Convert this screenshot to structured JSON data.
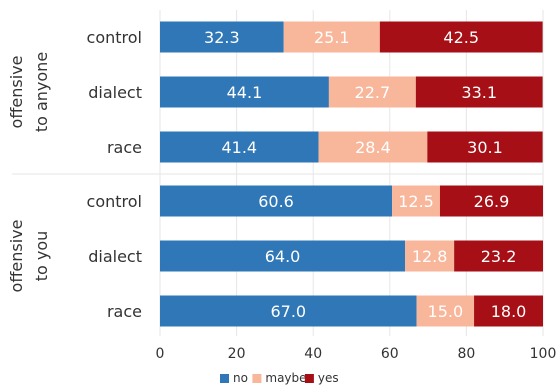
{
  "chart_data": {
    "type": "bar",
    "orientation": "horizontal",
    "stacked": true,
    "groups": [
      {
        "label": [
          "offensive",
          "to anyone"
        ],
        "categories": [
          "control",
          "dialect",
          "race"
        ]
      },
      {
        "label": [
          "offensive",
          "to you"
        ],
        "categories": [
          "control",
          "dialect",
          "race"
        ]
      }
    ],
    "series": [
      {
        "name": "no",
        "color": "#2f77b6",
        "values": [
          32.3,
          44.1,
          41.4,
          60.6,
          64.0,
          67.0
        ]
      },
      {
        "name": "maybe",
        "color": "#f8b69b",
        "values": [
          25.1,
          22.7,
          28.4,
          12.5,
          12.8,
          15.0
        ]
      },
      {
        "name": "yes",
        "color": "#a50f15",
        "values": [
          42.5,
          33.1,
          30.1,
          26.9,
          23.2,
          18.0
        ]
      }
    ],
    "xlim": [
      0,
      100
    ],
    "xticks": [
      0,
      20,
      40,
      60,
      80,
      100
    ],
    "grid": true,
    "legend_position": "bottom"
  }
}
